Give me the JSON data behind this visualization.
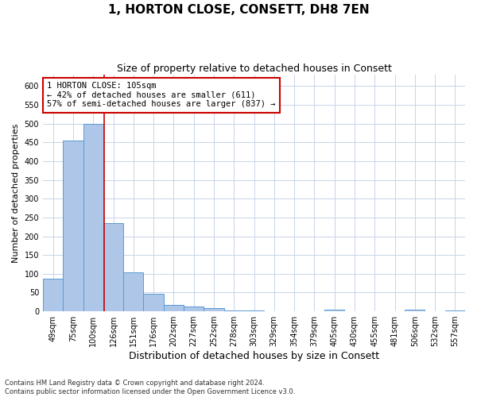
{
  "title": "1, HORTON CLOSE, CONSETT, DH8 7EN",
  "subtitle": "Size of property relative to detached houses in Consett",
  "xlabel": "Distribution of detached houses by size in Consett",
  "ylabel": "Number of detached properties",
  "bar_labels": [
    "49sqm",
    "75sqm",
    "100sqm",
    "126sqm",
    "151sqm",
    "176sqm",
    "202sqm",
    "227sqm",
    "252sqm",
    "278sqm",
    "303sqm",
    "329sqm",
    "354sqm",
    "379sqm",
    "405sqm",
    "430sqm",
    "455sqm",
    "481sqm",
    "506sqm",
    "532sqm",
    "557sqm"
  ],
  "bar_values": [
    87,
    455,
    500,
    235,
    103,
    47,
    18,
    13,
    8,
    3,
    3,
    1,
    1,
    0,
    5,
    1,
    0,
    0,
    5,
    1,
    3
  ],
  "bar_color": "#aec6e8",
  "bar_edge_color": "#5b9bd5",
  "property_line_x": 2.55,
  "annotation_line1": "1 HORTON CLOSE: 105sqm",
  "annotation_line2": "← 42% of detached houses are smaller (611)",
  "annotation_line3": "57% of semi-detached houses are larger (837) →",
  "annotation_box_color": "#ffffff",
  "annotation_border_color": "#cc0000",
  "ylim": [
    0,
    630
  ],
  "yticks": [
    0,
    50,
    100,
    150,
    200,
    250,
    300,
    350,
    400,
    450,
    500,
    550,
    600
  ],
  "footer_line1": "Contains HM Land Registry data © Crown copyright and database right 2024.",
  "footer_line2": "Contains public sector information licensed under the Open Government Licence v3.0.",
  "bg_color": "#ffffff",
  "grid_color": "#c8d4e8",
  "red_line_color": "#cc0000",
  "title_fontsize": 11,
  "subtitle_fontsize": 9,
  "tick_label_fontsize": 7,
  "ylabel_fontsize": 8,
  "xlabel_fontsize": 9,
  "annotation_fontsize": 7.5,
  "footer_fontsize": 6
}
